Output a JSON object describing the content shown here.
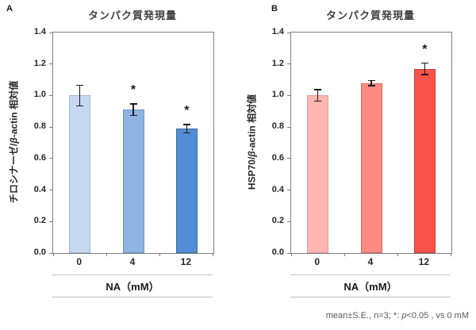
{
  "caption": {
    "text": "mean±S.E., n=3; *: p<0.05 , vs 0 mM",
    "prefix": "mean±S.E., n=3; *: ",
    "italic": "p",
    "suffix": "<0.05 , vs 0 mM"
  },
  "chart_data": [
    {
      "type": "bar",
      "panel_label": "A",
      "title": "タンパク質発現量",
      "xlabel": "NA（mM）",
      "ylabel": "チロシナーゼ/β-actin 相対値",
      "ylabel_parts": {
        "pre": "チロシナーゼ/",
        "italic": "β",
        "post": "-actin 相対値"
      },
      "categories": [
        "0",
        "4",
        "12"
      ],
      "values": [
        1.0,
        0.91,
        0.79
      ],
      "errors": [
        0.07,
        0.04,
        0.03
      ],
      "significance": [
        "",
        "*",
        "*"
      ],
      "ylim": [
        0,
        1.4
      ],
      "ytick_step": 0.2,
      "grid": false,
      "bar_colors": [
        "#c6d9f1",
        "#8db4e2",
        "#538dd5"
      ],
      "bar_border_colors": [
        "#9cb9dd",
        "#6e95c5",
        "#3f6d9d"
      ]
    },
    {
      "type": "bar",
      "panel_label": "B",
      "title": "タンパク質発現量",
      "xlabel": "NA（mM）",
      "ylabel": "HSP70/β-actin 相対値",
      "ylabel_parts": {
        "pre": "HSP70/",
        "italic": "β",
        "post": "-actin 相対値"
      },
      "categories": [
        "0",
        "4",
        "12"
      ],
      "values": [
        1.0,
        1.08,
        1.17
      ],
      "errors": [
        0.04,
        0.02,
        0.04
      ],
      "significance": [
        "",
        "",
        "*"
      ],
      "ylim": [
        0,
        1.4
      ],
      "ytick_step": 0.2,
      "grid": false,
      "bar_colors": [
        "#ffb6b0",
        "#fc8b84",
        "#f9534b"
      ],
      "bar_border_colors": [
        "#e69a94",
        "#d96a63",
        "#c23b35"
      ]
    }
  ]
}
